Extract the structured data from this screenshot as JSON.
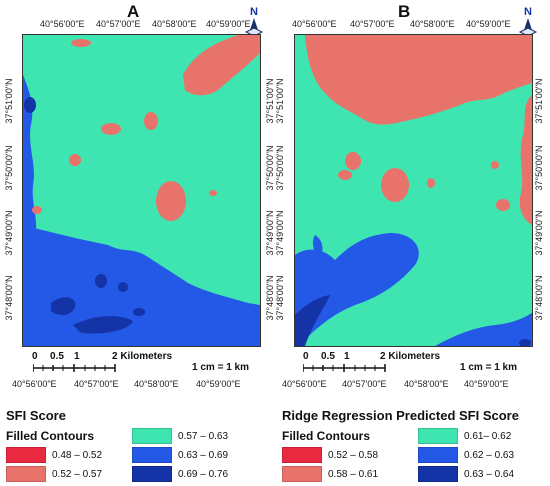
{
  "colors": {
    "low_red": "#e8293f",
    "salmon": "#e8736a",
    "teal": "#3fe5b1",
    "blue_mid": "#2459e8",
    "blue_dark": "#1433a6",
    "tick_text": "#222222"
  },
  "panel_a": {
    "letter": "A",
    "x_ticks": [
      "40°56'00\"E",
      "40°57'00\"E",
      "40°58'00\"E",
      "40°59'00\"E"
    ],
    "y_ticks": [
      "37°51'00\"N",
      "37°50'00\"N",
      "37°49'00\"N",
      "37°48'00\"N"
    ],
    "scale_numbers": [
      "0",
      "0.5",
      "1",
      "2 Kilometers"
    ],
    "scale_note": "1 cm = 1 km",
    "north": "N"
  },
  "panel_b": {
    "letter": "B",
    "x_ticks": [
      "40°56'00\"E",
      "40°57'00\"E",
      "40°58'00\"E",
      "40°59'00\"E"
    ],
    "y_ticks": [
      "37°51'00\"N",
      "37°50'00\"N",
      "37°49'00\"N",
      "37°48'00\"N"
    ],
    "scale_numbers": [
      "0",
      "0.5",
      "1",
      "2 Kilometers"
    ],
    "scale_note": "1 cm = 1 km",
    "north": "N"
  },
  "legend_a": {
    "title": "SFI Score",
    "subtitle": "Filled Contours",
    "items": [
      {
        "label": "0.48 – 0.52",
        "color": "#e8293f"
      },
      {
        "label": "0.52 – 0.57",
        "color": "#e8736a"
      },
      {
        "label": "0.57 – 0.63",
        "color": "#3fe5b1"
      },
      {
        "label": "0.63 – 0.69",
        "color": "#2459e8"
      },
      {
        "label": "0.69 – 0.76",
        "color": "#1433a6"
      }
    ]
  },
  "legend_b": {
    "title": "Ridge Regression Predicted SFI Score",
    "subtitle": "Filled Contours",
    "items": [
      {
        "label": "0.52 – 0.58",
        "color": "#e8293f"
      },
      {
        "label": "0.58 – 0.61",
        "color": "#e8736a"
      },
      {
        "label": "0.61– 0.62",
        "color": "#3fe5b1"
      },
      {
        "label": "0.62 – 0.63",
        "color": "#2459e8"
      },
      {
        "label": "0.63 – 0.64",
        "color": "#1433a6"
      }
    ]
  }
}
